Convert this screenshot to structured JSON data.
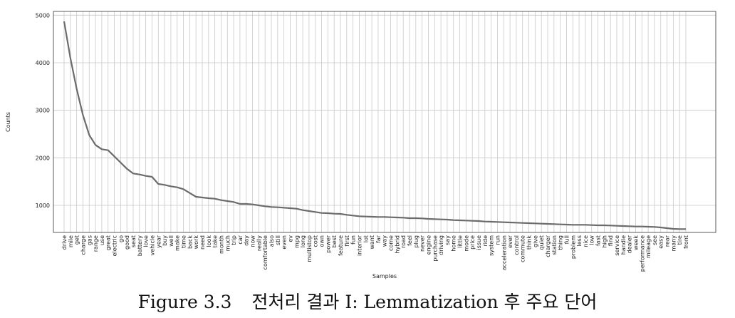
{
  "caption": {
    "figure_label": "Figure 3.3",
    "text": "전처리 결과 I: Lemmatization 후 주요 단어"
  },
  "chart_data": {
    "type": "line",
    "xlabel": "Samples",
    "ylabel": "Counts",
    "grid": true,
    "ylim": [
      430,
      5080
    ],
    "yticks": [
      1000,
      2000,
      3000,
      4000,
      5000
    ],
    "categories": [
      "drive",
      "mile",
      "get",
      "charge",
      "gas",
      "range",
      "use",
      "great",
      "electric",
      "go",
      "good",
      "seat",
      "battery",
      "love",
      "vehicle",
      "year",
      "buy",
      "well",
      "make",
      "time",
      "back",
      "work",
      "need",
      "look",
      "take",
      "month",
      "much",
      "trip",
      "car",
      "day",
      "now",
      "really",
      "comfortable",
      "also",
      "still",
      "even",
      "ev",
      "mpg",
      "long",
      "multistop",
      "cost",
      "own",
      "power",
      "best",
      "feature",
      "first",
      "fun",
      "interior",
      "lot",
      "want",
      "far",
      "way",
      "come",
      "hybrid",
      "road",
      "feel",
      "plug",
      "never",
      "engine",
      "purchase",
      "driving",
      "say",
      "home",
      "little",
      "mode",
      "price",
      "issue",
      "ride",
      "system",
      "run",
      "acceleration",
      "ever",
      "control",
      "commute",
      "think",
      "give",
      "quiet",
      "charger",
      "station",
      "thing",
      "full",
      "problem",
      "less",
      "nice",
      "low",
      "fast",
      "high",
      "find",
      "service",
      "handle",
      "dealer",
      "week",
      "performance",
      "mileage",
      "see",
      "easy",
      "rear",
      "many",
      "tire",
      "front"
    ],
    "values": [
      4870,
      4100,
      3450,
      2900,
      2480,
      2270,
      2180,
      2160,
      2030,
      1900,
      1770,
      1670,
      1650,
      1620,
      1600,
      1450,
      1430,
      1400,
      1380,
      1340,
      1260,
      1180,
      1165,
      1150,
      1140,
      1110,
      1090,
      1070,
      1030,
      1030,
      1020,
      1000,
      980,
      965,
      960,
      950,
      940,
      930,
      900,
      880,
      860,
      840,
      835,
      825,
      820,
      800,
      785,
      770,
      765,
      760,
      755,
      755,
      750,
      745,
      740,
      730,
      730,
      725,
      715,
      710,
      705,
      700,
      690,
      685,
      680,
      675,
      670,
      660,
      655,
      650,
      645,
      640,
      635,
      630,
      625,
      620,
      615,
      610,
      605,
      600,
      595,
      590,
      590,
      590,
      585,
      580,
      580,
      575,
      570,
      565,
      560,
      555,
      555,
      550,
      545,
      535,
      520,
      505,
      500,
      500
    ]
  }
}
